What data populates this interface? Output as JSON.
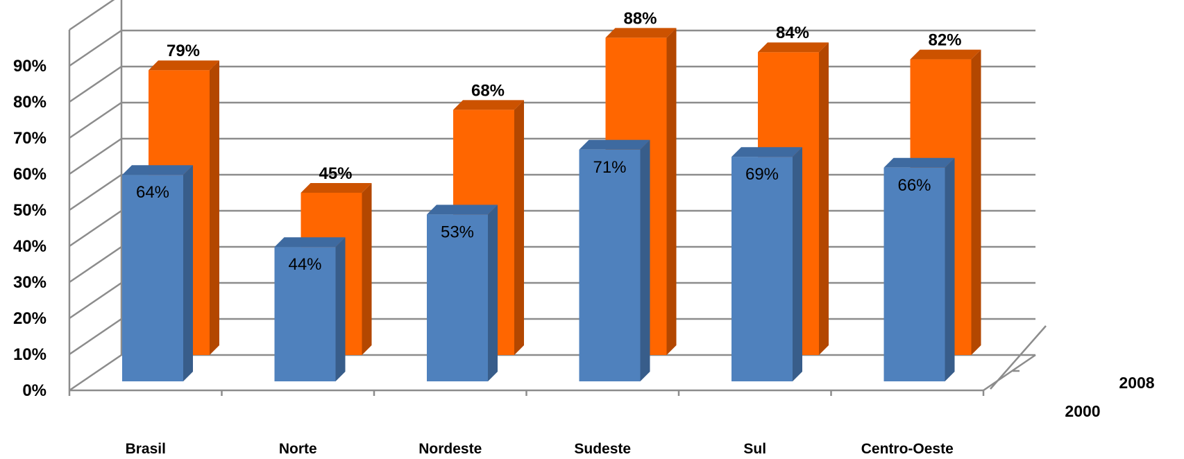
{
  "chart_data": {
    "type": "bar",
    "categories": [
      "Brasil",
      "Norte",
      "Nordeste",
      "Sudeste",
      "Sul",
      "Centro-Oeste"
    ],
    "series": [
      {
        "name": "2000",
        "values": [
          64,
          44,
          53,
          71,
          69,
          66
        ],
        "labels": [
          "64%",
          "44%",
          "53%",
          "71%",
          "69%",
          "66%"
        ],
        "color": "#4f81bd",
        "side_color": "#385d8a",
        "top_color": "#3e6aa0"
      },
      {
        "name": "2008",
        "values": [
          79,
          45,
          68,
          88,
          84,
          82
        ],
        "labels": [
          "79%",
          "45%",
          "68%",
          "88%",
          "84%",
          "82%"
        ],
        "color": "#ff6600",
        "side_color": "#b34700",
        "top_color": "#cc5200"
      }
    ],
    "y_ticks": [
      "0%",
      "10%",
      "20%",
      "30%",
      "40%",
      "50%",
      "60%",
      "70%",
      "80%",
      "90%"
    ],
    "ylim": [
      0,
      100
    ],
    "grid": true,
    "title": "",
    "xlabel": "",
    "ylabel": ""
  }
}
